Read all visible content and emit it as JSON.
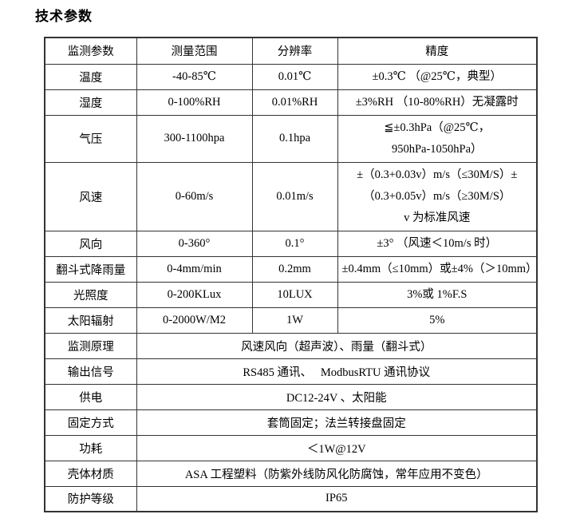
{
  "page_title": "技术参数",
  "colors": {
    "background": "#ffffff",
    "text": "#000000",
    "table_border": "#333333"
  },
  "table": {
    "headers": [
      "监测参数",
      "测量范围",
      "分辨率",
      "精度"
    ],
    "param_rows": [
      {
        "name": "温度",
        "range": "-40-85℃",
        "resolution": "0.01℃",
        "accuracy": [
          "±0.3℃ （@25℃，典型）"
        ]
      },
      {
        "name": "湿度",
        "range": "0-100%RH",
        "resolution": "0.01%RH",
        "accuracy": [
          "±3%RH （10-80%RH）无凝露时"
        ]
      },
      {
        "name": "气压",
        "range": "300-1100hpa",
        "resolution": "0.1hpa",
        "accuracy": [
          "≦±0.3hPa（@25℃，",
          "950hPa-1050hPa）"
        ]
      },
      {
        "name": "风速",
        "range": "0-60m/s",
        "resolution": "0.01m/s",
        "accuracy": [
          "±（0.3+0.03v）m/s（≤30M/S）±",
          "（0.3+0.05v）m/s（≥30M/S）",
          "v 为标准风速"
        ]
      },
      {
        "name": "风向",
        "range": "0-360°",
        "resolution": "0.1°",
        "accuracy": [
          "±3° （风速＜10m/s 时）"
        ]
      },
      {
        "name": "翻斗式降雨量",
        "range": "0-4mm/min",
        "resolution": "0.2mm",
        "accuracy": [
          "±0.4mm（≤10mm）或±4%（＞10mm）"
        ]
      },
      {
        "name": "光照度",
        "range": "0-200KLux",
        "resolution": "10LUX",
        "accuracy": [
          "3%或 1%F.S"
        ]
      },
      {
        "name": "太阳辐射",
        "range": "0-2000W/M2",
        "resolution": "1W",
        "accuracy": [
          "5%"
        ]
      }
    ],
    "spec_rows": [
      {
        "name": "监测原理",
        "value": "风速风向（超声波）、雨量（翻斗式）"
      },
      {
        "name": "输出信号",
        "value": "RS485 通讯、　 ModbusRTU 通讯协议"
      },
      {
        "name": "供电",
        "value": "DC12-24V 、太阳能"
      },
      {
        "name": "固定方式",
        "value": "套筒固定；法兰转接盘固定"
      },
      {
        "name": "功耗",
        "value": "＜1W@12V"
      },
      {
        "name": "壳体材质",
        "value": "ASA 工程塑料（防紫外线防风化防腐蚀，常年应用不变色）"
      },
      {
        "name": "防护等级",
        "value": "IP65"
      }
    ]
  }
}
